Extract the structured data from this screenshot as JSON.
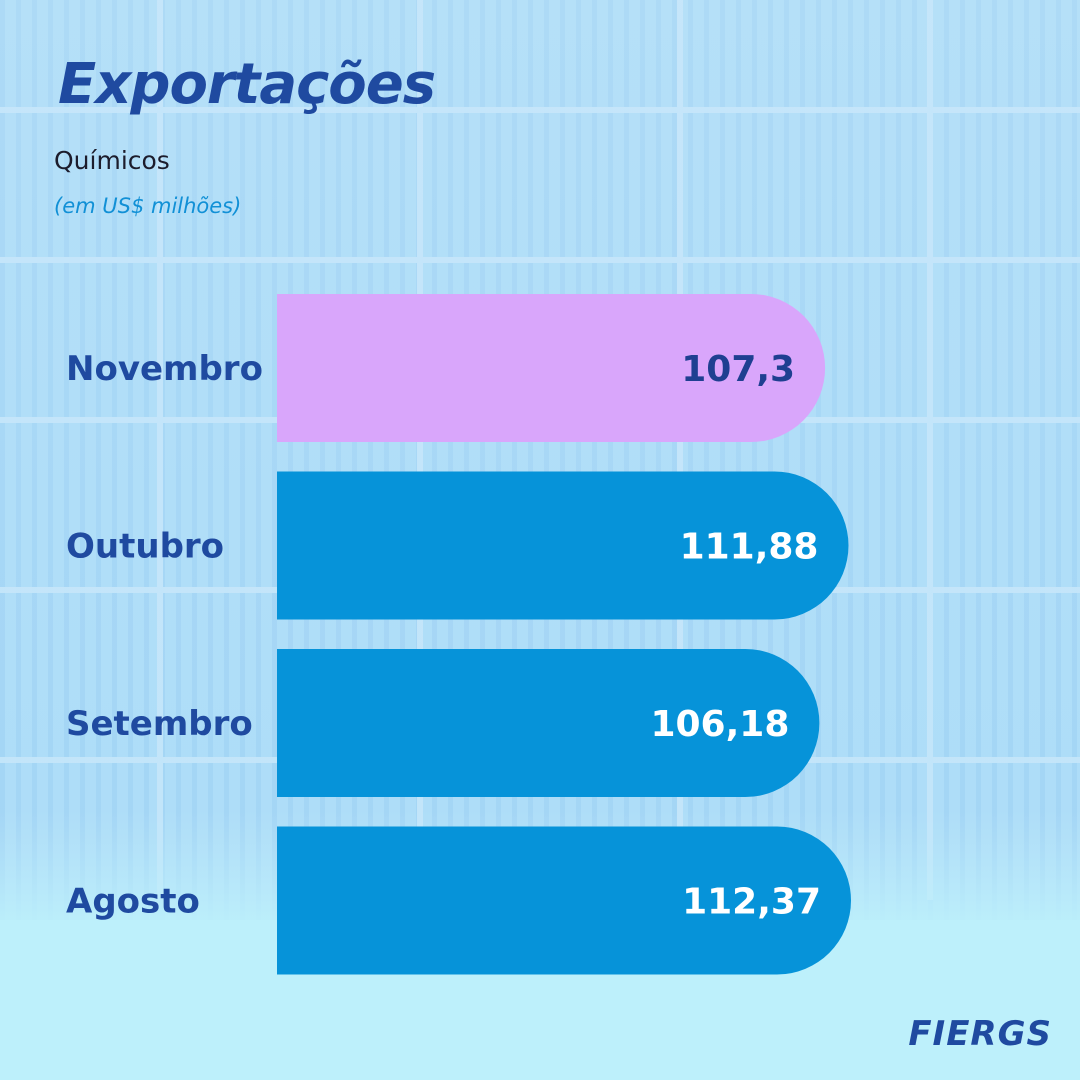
{
  "header": {
    "title": "Exportações",
    "subtitle": "Químicos",
    "unit": "(em US$ milhões)"
  },
  "brand": {
    "logo_text": "FIERGS"
  },
  "colors": {
    "background": "#bdeefb",
    "highlight_bar": "#d9a6fb",
    "bar": "#0693d9",
    "category_text": "#1f4aa0",
    "highlight_value_text": "#1f3f91",
    "value_text": "#ffffff"
  },
  "chart_data": {
    "type": "bar",
    "orientation": "horizontal",
    "categories": [
      "Novembro",
      "Outubro",
      "Setembro",
      "Agosto"
    ],
    "values": [
      107.3,
      111.88,
      106.18,
      112.37
    ],
    "value_labels": [
      "107,3",
      "111,88",
      "106,18",
      "112,37"
    ],
    "highlight_index": 0
  }
}
